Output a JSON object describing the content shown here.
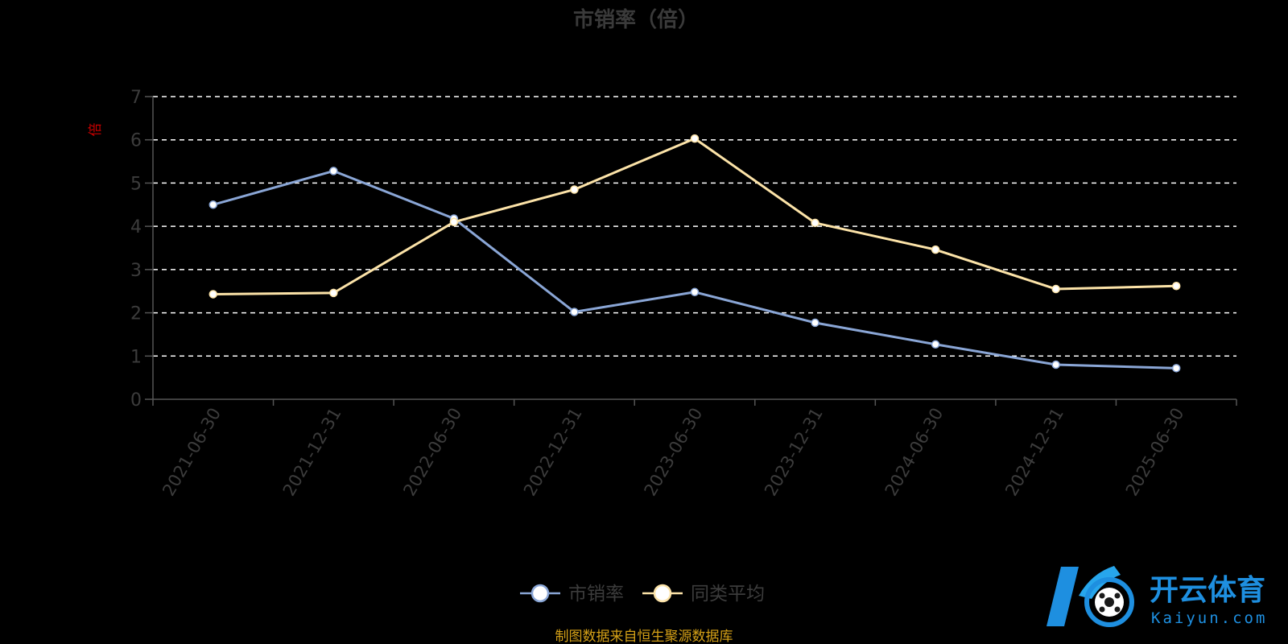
{
  "chart_data": {
    "type": "line",
    "title": "市销率（倍）",
    "unit_label": "倍",
    "categories": [
      "2021-06-30",
      "2021-12-31",
      "2022-06-30",
      "2022-12-31",
      "2023-06-30",
      "2023-12-31",
      "2024-06-30",
      "2024-12-31",
      "2025-06-30"
    ],
    "ylim": [
      0,
      7
    ],
    "yticks": [
      "0",
      "1",
      "2",
      "3",
      "4",
      "5",
      "6",
      "7"
    ],
    "grid": true,
    "legend_position": "bottom-center",
    "series": [
      {
        "name": "市销率",
        "color": "#8aa6d6",
        "values": [
          4.5,
          5.28,
          4.18,
          2.02,
          2.48,
          1.77,
          1.27,
          0.8,
          0.72
        ]
      },
      {
        "name": "同类平均",
        "color": "#fce3a8",
        "values": [
          2.43,
          2.46,
          4.1,
          4.85,
          6.03,
          4.08,
          3.46,
          2.55,
          2.62
        ]
      }
    ]
  },
  "source_note": "制图数据来自恒生聚源数据库",
  "watermark": {
    "brand_text": "开云体育",
    "brand_sub": "Kaiyun.com",
    "brand_color": "#1e8fe0"
  }
}
